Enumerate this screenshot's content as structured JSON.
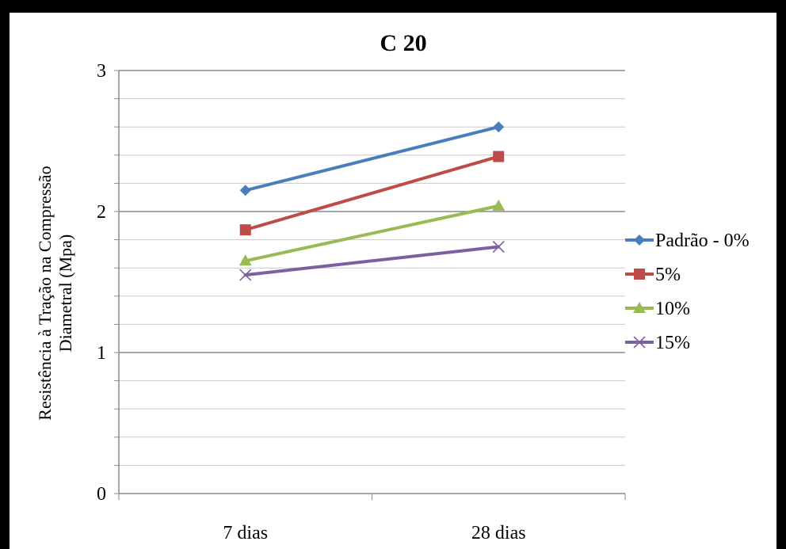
{
  "chart_data": {
    "type": "line",
    "title": "C 20",
    "ylabel_line1": "Resistência à Tração na Compressão",
    "ylabel_line2": "Diametral (Mpa)",
    "xlabel": "",
    "categories": [
      "7 dias",
      "28 dias"
    ],
    "ylim": [
      0,
      3
    ],
    "yticks": [
      "0",
      "1",
      "2",
      "3"
    ],
    "minor_grid_step": 0.2,
    "grid": true,
    "legend_position": "right",
    "series": [
      {
        "name": "Padrão - 0%",
        "values": [
          2.15,
          2.6
        ],
        "color": "#4a7ebb",
        "marker": "diamond"
      },
      {
        "name": "5%",
        "values": [
          1.87,
          2.39
        ],
        "color": "#be4b48",
        "marker": "square"
      },
      {
        "name": "10%",
        "values": [
          1.65,
          2.04
        ],
        "color": "#98b954",
        "marker": "triangle"
      },
      {
        "name": "15%",
        "values": [
          1.55,
          1.75
        ],
        "color": "#7d60a0",
        "marker": "x"
      }
    ]
  }
}
